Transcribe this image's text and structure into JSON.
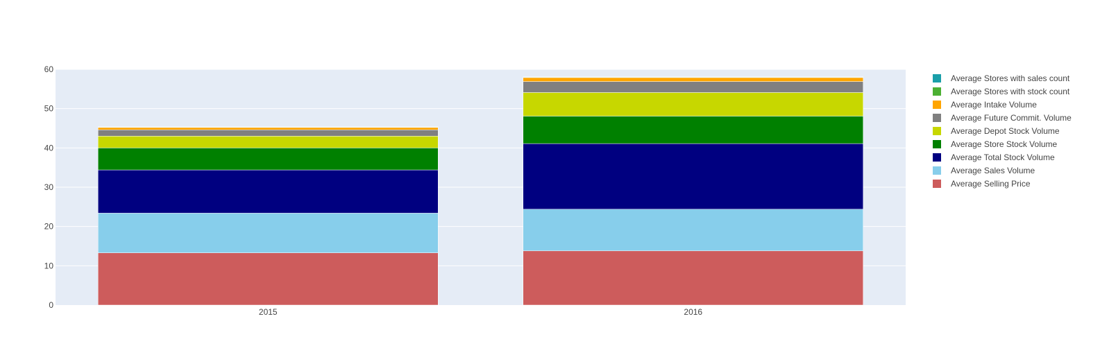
{
  "chart_data": {
    "type": "bar",
    "barmode": "stack",
    "categories": [
      "2015",
      "2016"
    ],
    "ylim": [
      0,
      60
    ],
    "yticks": [
      0,
      10,
      20,
      30,
      40,
      50,
      60
    ],
    "grid": true,
    "legend_position": "right",
    "plot_bg": "#e5ecf6",
    "series": [
      {
        "name": "Average Selling Price",
        "color": "#cd5c5c",
        "values": [
          13.3,
          13.8
        ]
      },
      {
        "name": "Average Sales Volume",
        "color": "#87ceeb",
        "values": [
          10.1,
          10.6
        ]
      },
      {
        "name": "Average Total Stock Volume",
        "color": "#000080",
        "values": [
          11.0,
          16.7
        ]
      },
      {
        "name": "Average Store Stock Volume",
        "color": "#008000",
        "values": [
          5.6,
          7.0
        ]
      },
      {
        "name": "Average Depot Stock Volume",
        "color": "#c7d700",
        "values": [
          3.0,
          6.0
        ]
      },
      {
        "name": "Average Future Commit. Volume",
        "color": "#808080",
        "values": [
          1.6,
          2.8
        ]
      },
      {
        "name": "Average Intake Volume",
        "color": "#ffa500",
        "values": [
          0.6,
          1.0
        ]
      },
      {
        "name": "Average Stores with stock count",
        "color": "#4cb033",
        "values": [
          0.1,
          0.1
        ]
      },
      {
        "name": "Average Stores with sales count",
        "color": "#1a9fa9",
        "values": [
          0.1,
          0.1
        ]
      }
    ]
  }
}
